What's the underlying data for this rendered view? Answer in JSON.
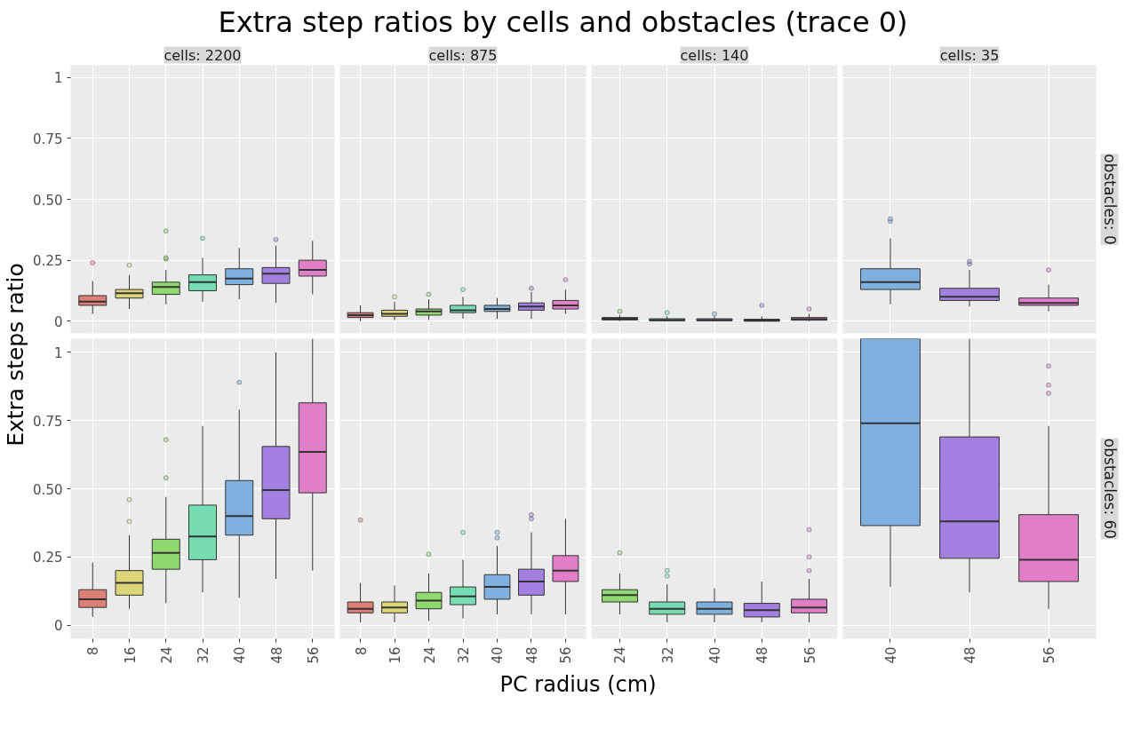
{
  "chart_data": [
    {
      "type": "other",
      "title": "Extra step ratios by cells and obstacles (trace 0)",
      "xlabel": "PC radius (cm)",
      "ylabel": "Extra steps ratio"
    },
    {
      "type": "box",
      "title": "cells: 2200",
      "categories": [
        "8",
        "16",
        "24",
        "32",
        "40",
        "48",
        "56"
      ],
      "colors": [
        "#dd7f77",
        "#dcd57a",
        "#8fda6f",
        "#76ddb2",
        "#7fb1e0",
        "#a280e0",
        "#e07fc8"
      ],
      "ylim": [
        -0.05,
        1.05
      ],
      "yticks": [
        0,
        0.25,
        {
          "value": 0.5,
          "label": "0.50"
        },
        0.75,
        1
      ],
      "grid": true,
      "tick_labels": "y",
      "boxes": [
        {
          "low": 0.03,
          "q1": 0.065,
          "median": 0.08,
          "q3": 0.105,
          "high": 0.165,
          "outliers": [
            0.24
          ]
        },
        {
          "low": 0.05,
          "q1": 0.095,
          "median": 0.115,
          "q3": 0.13,
          "high": 0.19,
          "outliers": [
            0.23
          ]
        },
        {
          "low": 0.07,
          "q1": 0.11,
          "median": 0.14,
          "q3": 0.16,
          "high": 0.21,
          "outliers": [
            0.255,
            0.26,
            0.37
          ]
        },
        {
          "low": 0.08,
          "q1": 0.125,
          "median": 0.16,
          "q3": 0.19,
          "high": 0.26,
          "outliers": [
            0.34
          ]
        },
        {
          "low": 0.09,
          "q1": 0.15,
          "median": 0.175,
          "q3": 0.215,
          "high": 0.3
        },
        {
          "low": 0.075,
          "q1": 0.155,
          "median": 0.195,
          "q3": 0.22,
          "high": 0.31,
          "outliers": [
            0.335
          ]
        },
        {
          "low": 0.11,
          "q1": 0.185,
          "median": 0.21,
          "q3": 0.25,
          "high": 0.33
        }
      ]
    },
    {
      "type": "box",
      "title": "cells: 875",
      "categories": [
        "8",
        "16",
        "24",
        "32",
        "40",
        "48",
        "56"
      ],
      "colors": [
        "#dd7f77",
        "#dcd57a",
        "#8fda6f",
        "#76ddb2",
        "#7fb1e0",
        "#a280e0",
        "#e07fc8"
      ],
      "ylim": [
        -0.05,
        1.05
      ],
      "yticks": [
        0,
        0.25,
        0.5,
        0.75,
        1
      ],
      "grid": true,
      "tick_labels": false,
      "boxes": [
        {
          "low": 0,
          "q1": 0.015,
          "median": 0.025,
          "q3": 0.035,
          "high": 0.065
        },
        {
          "low": 0.005,
          "q1": 0.02,
          "median": 0.03,
          "q3": 0.045,
          "high": 0.08,
          "outliers": [
            0.1
          ]
        },
        {
          "low": 0.005,
          "q1": 0.025,
          "median": 0.04,
          "q3": 0.05,
          "high": 0.09,
          "outliers": [
            0.11
          ]
        },
        {
          "low": 0.01,
          "q1": 0.035,
          "median": 0.045,
          "q3": 0.065,
          "high": 0.1,
          "outliers": [
            0.13
          ]
        },
        {
          "low": 0.01,
          "q1": 0.04,
          "median": 0.05,
          "q3": 0.065,
          "high": 0.095
        },
        {
          "low": 0.01,
          "q1": 0.045,
          "median": 0.06,
          "q3": 0.075,
          "high": 0.12,
          "outliers": [
            0.135
          ]
        },
        {
          "low": 0.03,
          "q1": 0.05,
          "median": 0.065,
          "q3": 0.085,
          "high": 0.13,
          "outliers": [
            0.17
          ]
        }
      ]
    },
    {
      "type": "box",
      "title": "cells: 140",
      "categories": [
        "24",
        "32",
        "40",
        "48",
        "56"
      ],
      "colors": [
        "#8fda6f",
        "#76ddb2",
        "#7fb1e0",
        "#a280e0",
        "#e07fc8"
      ],
      "ylim": [
        -0.05,
        1.05
      ],
      "yticks": [
        0,
        0.25,
        0.5,
        0.75,
        1
      ],
      "grid": true,
      "tick_labels": false,
      "boxes": [
        {
          "low": 0,
          "q1": 0.005,
          "median": 0.01,
          "q3": 0.015,
          "high": 0.025,
          "outliers": [
            0.04
          ]
        },
        {
          "low": 0,
          "q1": 0.002,
          "median": 0.005,
          "q3": 0.01,
          "high": 0.02,
          "outliers": [
            0.035
          ]
        },
        {
          "low": 0,
          "q1": 0.002,
          "median": 0.005,
          "q3": 0.01,
          "high": 0.02,
          "outliers": [
            0.03
          ]
        },
        {
          "low": 0,
          "q1": 0.0,
          "median": 0.003,
          "q3": 0.008,
          "high": 0.02,
          "outliers": [
            0.065
          ]
        },
        {
          "low": 0,
          "q1": 0.004,
          "median": 0.008,
          "q3": 0.015,
          "high": 0.03,
          "outliers": [
            0.05
          ]
        }
      ]
    },
    {
      "type": "box",
      "title": "cells: 35",
      "y2label": "obstacles: 0",
      "categories": [
        "40",
        "48",
        "56"
      ],
      "colors": [
        "#7fb1e0",
        "#a280e0",
        "#e07fc8"
      ],
      "ylim": [
        -0.05,
        1.05
      ],
      "yticks": [
        0,
        0.25,
        0.5,
        0.75,
        1
      ],
      "grid": true,
      "tick_labels": false,
      "boxes": [
        {
          "low": 0.07,
          "q1": 0.13,
          "median": 0.16,
          "q3": 0.215,
          "high": 0.34,
          "outliers": [
            0.41,
            0.42
          ]
        },
        {
          "low": 0.06,
          "q1": 0.085,
          "median": 0.1,
          "q3": 0.135,
          "high": 0.21,
          "outliers": [
            0.235,
            0.245
          ]
        },
        {
          "low": 0.04,
          "q1": 0.065,
          "median": 0.075,
          "q3": 0.095,
          "high": 0.15,
          "outliers": [
            0.21
          ]
        }
      ]
    },
    {
      "type": "box",
      "categories": [
        "8",
        "16",
        "24",
        "32",
        "40",
        "48",
        "56"
      ],
      "colors": [
        "#dd7f77",
        "#dcd57a",
        "#8fda6f",
        "#76ddb2",
        "#7fb1e0",
        "#a280e0",
        "#e07fc8"
      ],
      "ylim": [
        -0.05,
        1.05
      ],
      "yticks": [
        0,
        0.25,
        {
          "value": 0.5,
          "label": "0.50"
        },
        0.75,
        1
      ],
      "grid": true,
      "boxes": [
        {
          "low": 0.03,
          "q1": 0.065,
          "median": 0.095,
          "q3": 0.13,
          "high": 0.23
        },
        {
          "low": 0.06,
          "q1": 0.11,
          "median": 0.155,
          "q3": 0.2,
          "high": 0.33,
          "outliers": [
            0.38,
            0.46
          ]
        },
        {
          "low": 0.08,
          "q1": 0.205,
          "median": 0.265,
          "q3": 0.315,
          "high": 0.47,
          "outliers": [
            0.54,
            0.68
          ]
        },
        {
          "low": 0.12,
          "q1": 0.24,
          "median": 0.325,
          "q3": 0.44,
          "high": 0.73
        },
        {
          "low": 0.1,
          "q1": 0.33,
          "median": 0.4,
          "q3": 0.53,
          "high": 0.79,
          "outliers": [
            0.89
          ]
        },
        {
          "low": 0.17,
          "q1": 0.39,
          "median": 0.495,
          "q3": 0.655,
          "high": 1.0
        },
        {
          "low": 0.2,
          "q1": 0.485,
          "median": 0.635,
          "q3": 0.815,
          "high": 1.05
        }
      ]
    },
    {
      "type": "box",
      "categories": [
        "8",
        "16",
        "24",
        "32",
        "40",
        "48",
        "56"
      ],
      "colors": [
        "#dd7f77",
        "#dcd57a",
        "#8fda6f",
        "#76ddb2",
        "#7fb1e0",
        "#a280e0",
        "#e07fc8"
      ],
      "ylim": [
        -0.05,
        1.05
      ],
      "yticks": [
        0,
        0.25,
        0.5,
        0.75,
        1
      ],
      "grid": true,
      "tick_labels": "x",
      "boxes": [
        {
          "low": 0.01,
          "q1": 0.045,
          "median": 0.06,
          "q3": 0.085,
          "high": 0.155,
          "outliers": [
            0.385
          ]
        },
        {
          "low": 0.01,
          "q1": 0.045,
          "median": 0.065,
          "q3": 0.085,
          "high": 0.145
        },
        {
          "low": 0.015,
          "q1": 0.06,
          "median": 0.09,
          "q3": 0.12,
          "high": 0.19,
          "outliers": [
            0.26
          ]
        },
        {
          "low": 0.025,
          "q1": 0.075,
          "median": 0.105,
          "q3": 0.14,
          "high": 0.24,
          "outliers": [
            0.34
          ]
        },
        {
          "low": 0.04,
          "q1": 0.095,
          "median": 0.14,
          "q3": 0.185,
          "high": 0.29,
          "outliers": [
            0.32,
            0.34
          ]
        },
        {
          "low": 0.04,
          "q1": 0.11,
          "median": 0.16,
          "q3": 0.205,
          "high": 0.34,
          "outliers": [
            0.39,
            0.405
          ]
        },
        {
          "low": 0.04,
          "q1": 0.16,
          "median": 0.2,
          "q3": 0.255,
          "high": 0.39
        }
      ]
    },
    {
      "type": "box",
      "categories": [
        "24",
        "32",
        "40",
        "48",
        "56"
      ],
      "colors": [
        "#8fda6f",
        "#76ddb2",
        "#7fb1e0",
        "#a280e0",
        "#e07fc8"
      ],
      "ylim": [
        -0.05,
        1.05
      ],
      "yticks": [
        0,
        0.25,
        0.5,
        0.75,
        1
      ],
      "grid": true,
      "tick_labels": "x",
      "boxes": [
        {
          "low": 0.04,
          "q1": 0.085,
          "median": 0.11,
          "q3": 0.13,
          "high": 0.19,
          "outliers": [
            0.265
          ]
        },
        {
          "low": 0.01,
          "q1": 0.04,
          "median": 0.06,
          "q3": 0.085,
          "high": 0.15,
          "outliers": [
            0.18,
            0.2
          ]
        },
        {
          "low": 0.01,
          "q1": 0.04,
          "median": 0.06,
          "q3": 0.085,
          "high": 0.135
        },
        {
          "low": 0.01,
          "q1": 0.03,
          "median": 0.055,
          "q3": 0.08,
          "high": 0.16
        },
        {
          "low": 0.01,
          "q1": 0.045,
          "median": 0.065,
          "q3": 0.095,
          "high": 0.17,
          "outliers": [
            0.2,
            0.25,
            0.35
          ]
        }
      ]
    },
    {
      "type": "box",
      "y2label": "obstacles: 60",
      "categories": [
        "40",
        "48",
        "56"
      ],
      "colors": [
        "#7fb1e0",
        "#a280e0",
        "#e07fc8"
      ],
      "ylim": [
        -0.05,
        1.05
      ],
      "yticks": [
        0,
        0.25,
        0.5,
        0.75,
        1
      ],
      "grid": true,
      "tick_labels": "x",
      "boxes": [
        {
          "low": 0.14,
          "q1": 0.365,
          "median": 0.74,
          "q3": 1.05,
          "high": 1.05
        },
        {
          "low": 0.12,
          "q1": 0.245,
          "median": 0.38,
          "q3": 0.69,
          "high": 1.05
        },
        {
          "low": 0.06,
          "q1": 0.16,
          "median": 0.24,
          "q3": 0.405,
          "high": 0.73,
          "outliers": [
            0.85,
            0.88,
            0.95
          ]
        }
      ]
    }
  ]
}
